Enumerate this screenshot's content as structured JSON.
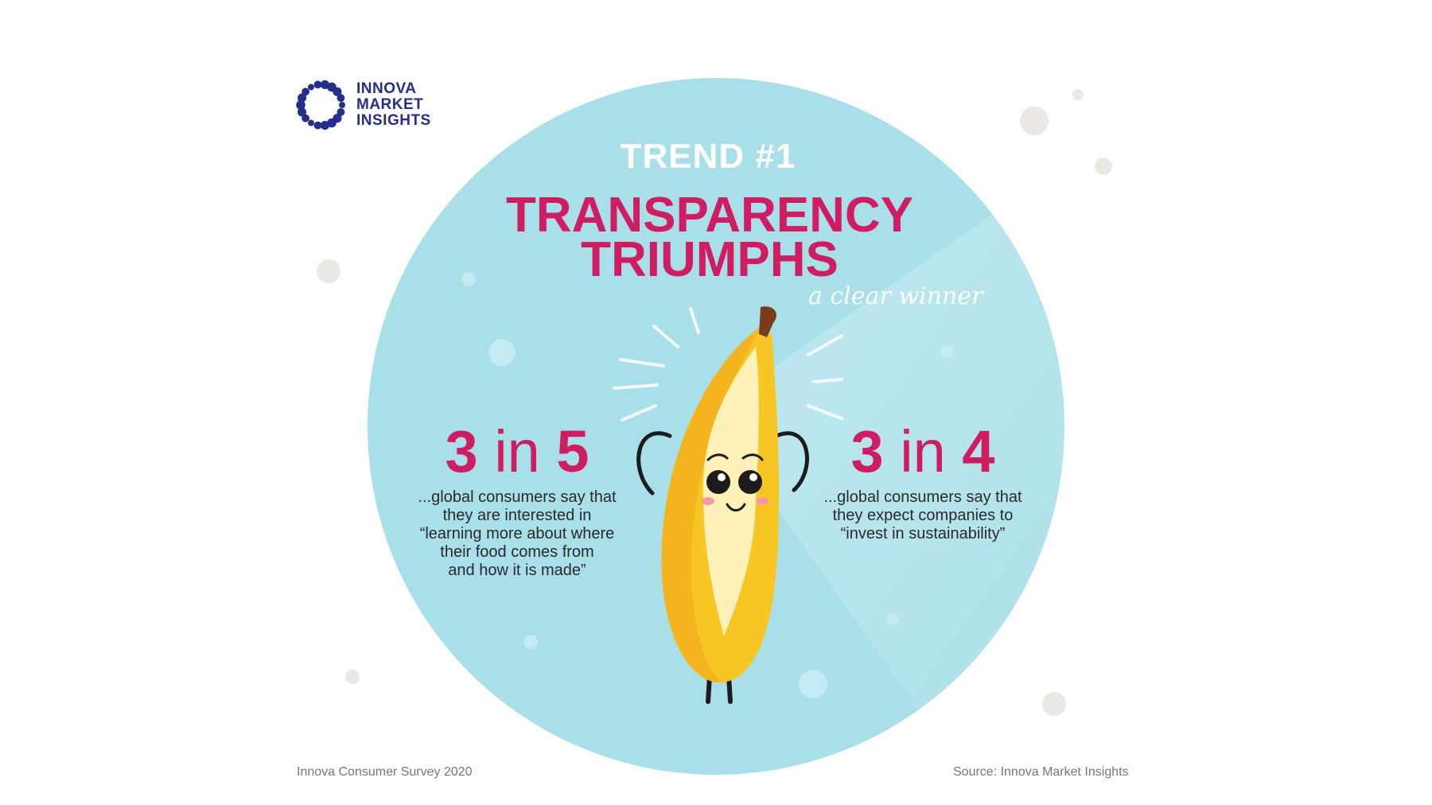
{
  "brand": {
    "logo_lines": [
      "INNOVA",
      "MARKET",
      "INSIGHTS"
    ],
    "logo_icon": "dotted-ring-icon",
    "color": "#262d8a"
  },
  "headline": {
    "kicker": "TREND #1",
    "title_lines": [
      "TRANSPARENCY",
      "TRIUMPHS"
    ],
    "tagline": "a clear winner"
  },
  "stats": [
    {
      "numerator": "3",
      "connector": "in",
      "denominator": "5",
      "lines": [
        "...global consumers say that",
        "they are interested in",
        "“learning more about where",
        "their food comes from",
        "and how it is made”"
      ]
    },
    {
      "numerator": "3",
      "connector": "in",
      "denominator": "4",
      "lines": [
        "...global consumers say that",
        "they expect companies to",
        "“invest in sustainability”"
      ]
    }
  ],
  "footer": {
    "left": "Innova Consumer Survey 2020",
    "right": "Source: Innova Market Insights"
  },
  "colors": {
    "accent": "#cf1d62",
    "circle": "#a8dfe8",
    "banana": "#f7c624"
  },
  "illustration": "banana-mascot-icon"
}
